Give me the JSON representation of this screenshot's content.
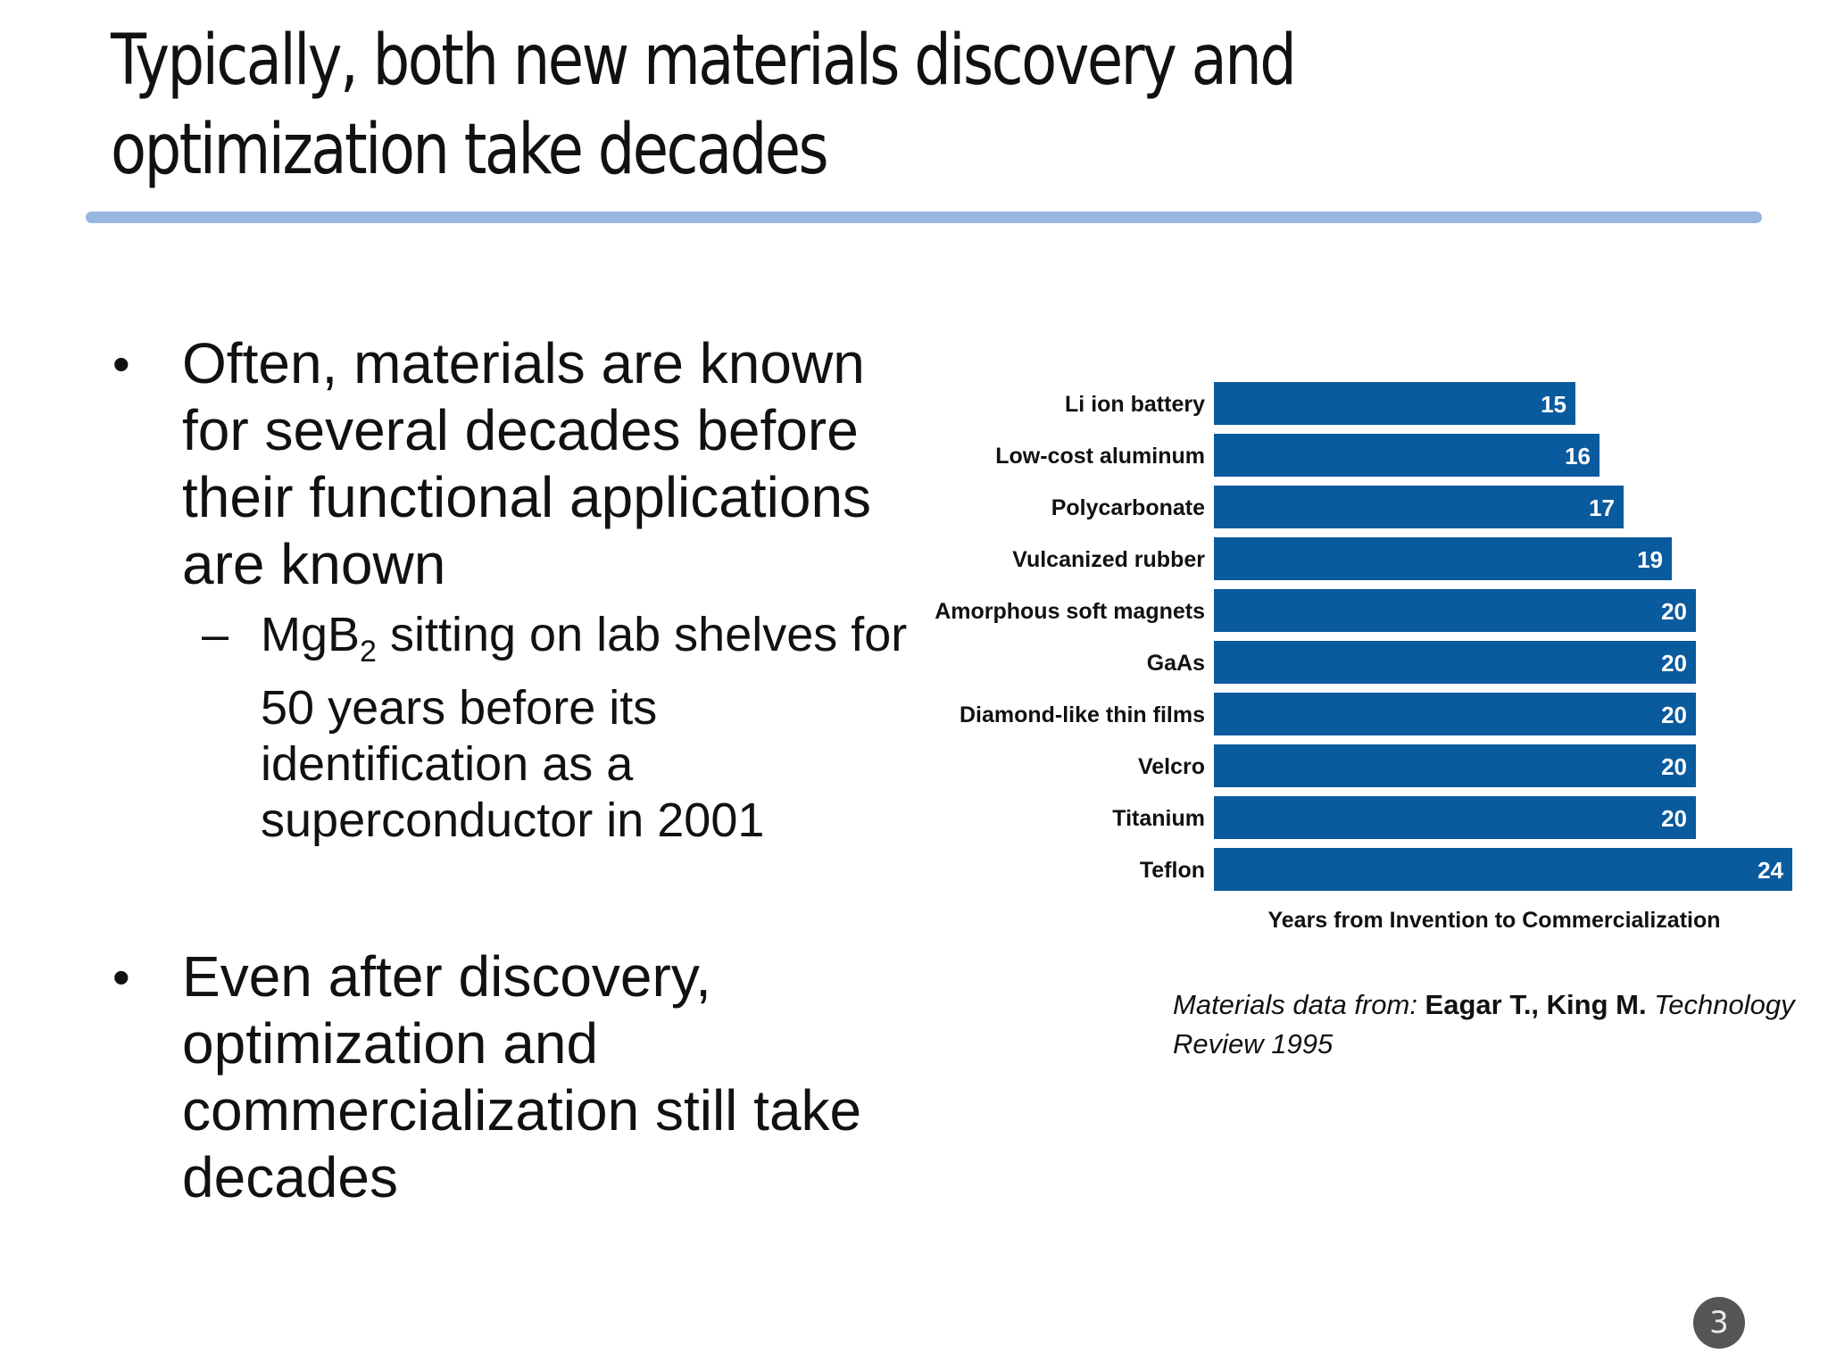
{
  "slide": {
    "title": "Typically, both new materials discovery and optimization take decades",
    "page_number": "3",
    "colors": {
      "bar": "#0a5a9e",
      "rule": "#97b6e0",
      "page_badge": "#555555"
    }
  },
  "bullets": {
    "b1": "Often, materials are known for several decades before their functional applications are known",
    "sub_mg": "MgB",
    "sub_sub": "2",
    "sub_rest": " sitting on lab shelves for 50 years before its identification as a superconductor in 2001",
    "b2": "Even after discovery, optimization and commercialization still take decades"
  },
  "citation": {
    "prefix": "Materials data from: ",
    "authors": "Eagar T., King M.",
    "suffix": " Technology Review 1995"
  },
  "chart_data": {
    "type": "bar",
    "orientation": "horizontal",
    "categories": [
      "Li ion battery",
      "Low-cost aluminum",
      "Polycarbonate",
      "Vulcanized rubber",
      "Amorphous soft magnets",
      "GaAs",
      "Diamond-like thin films",
      "Velcro",
      "Titanium",
      "Teflon"
    ],
    "values": [
      15,
      16,
      17,
      19,
      20,
      20,
      20,
      20,
      20,
      24
    ],
    "xlabel": "Years from Invention to Commercialization",
    "ylabel": "",
    "title": "",
    "xlim": [
      0,
      24
    ],
    "grid": false,
    "legend": "none",
    "data_labels": "inside-end"
  }
}
